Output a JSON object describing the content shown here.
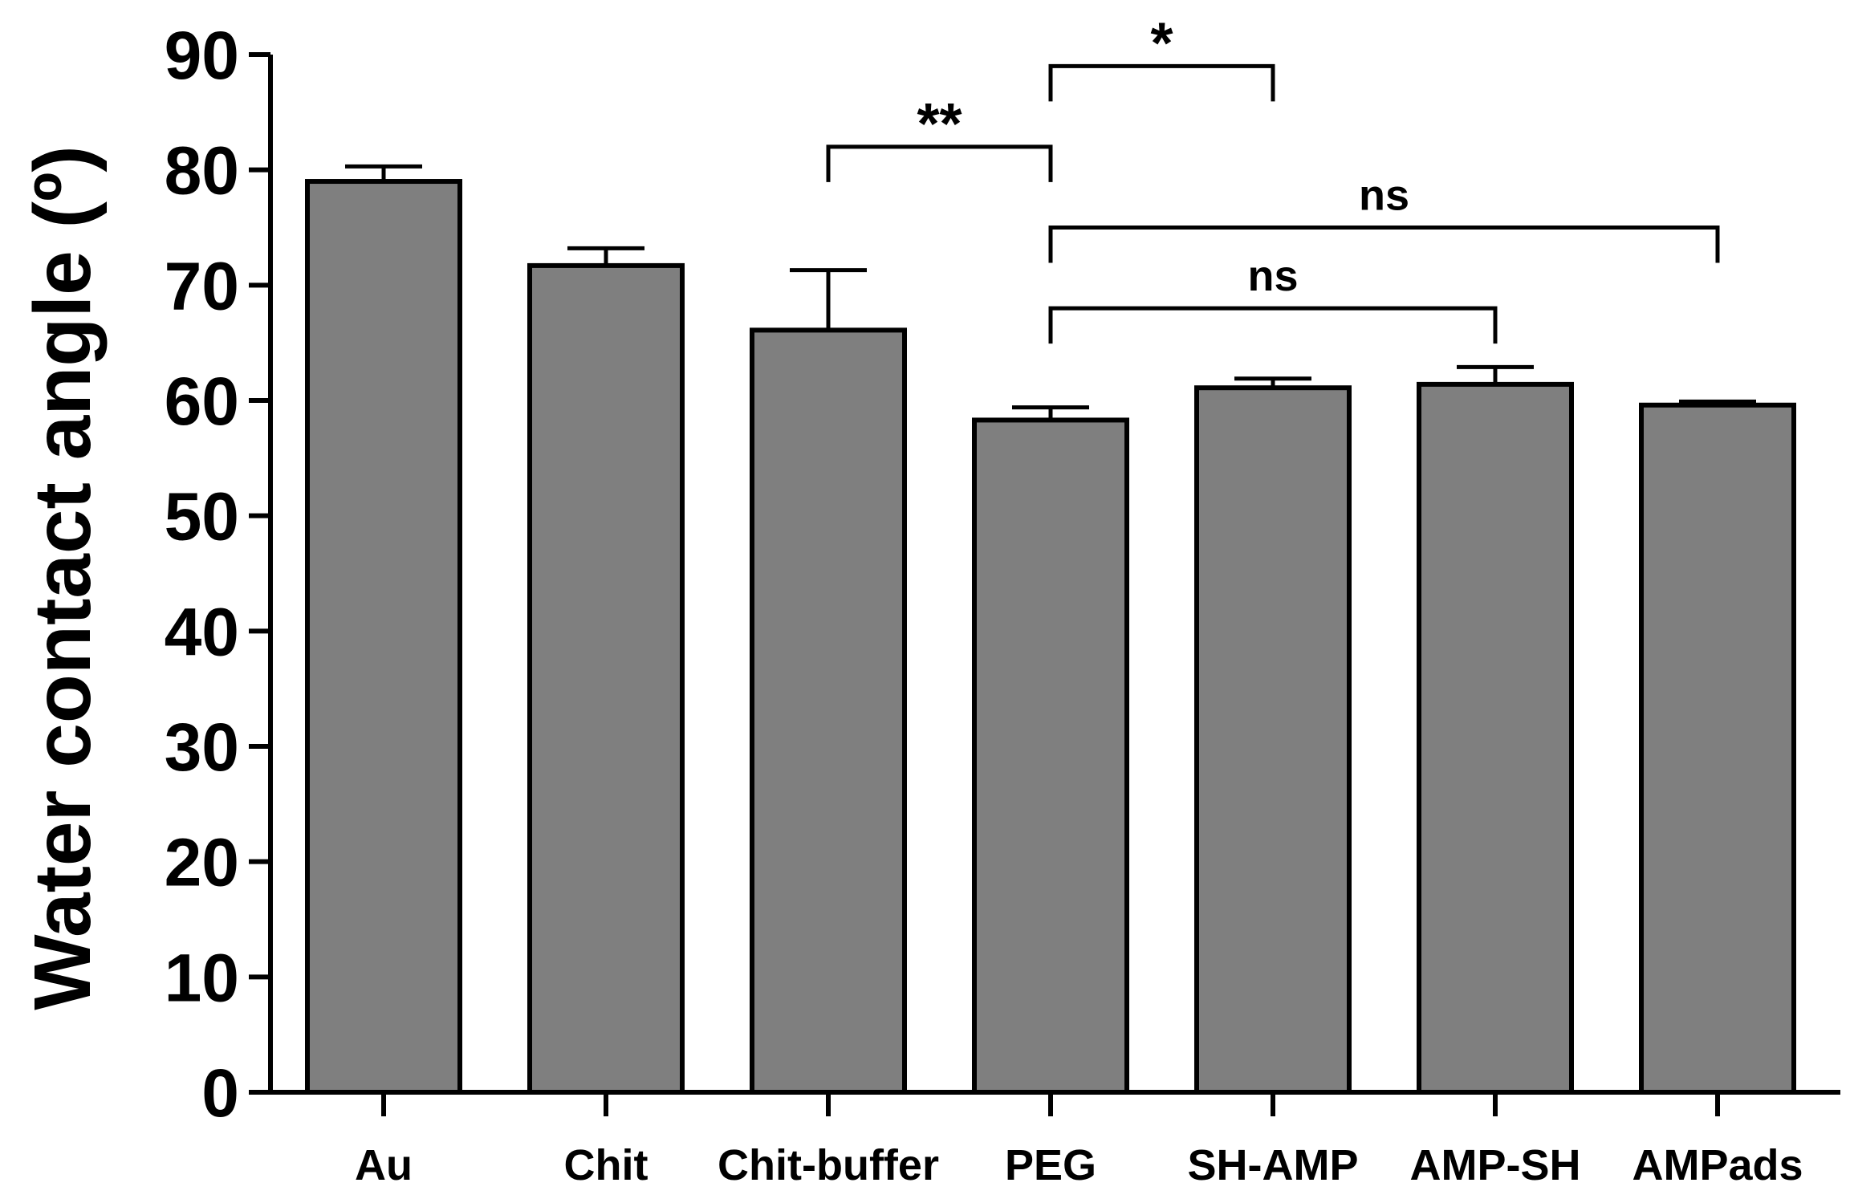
{
  "chart_data": {
    "type": "bar",
    "title": "",
    "xlabel": "",
    "ylabel": "Water contact angle (º)",
    "ylim": [
      0,
      90
    ],
    "yticks": [
      0,
      10,
      20,
      30,
      40,
      50,
      60,
      70,
      80,
      90
    ],
    "categories": [
      "Au",
      "Chit",
      "Chit-buffer",
      "PEG",
      "SH-AMP",
      "AMP-SH",
      "AMPads"
    ],
    "values": [
      79,
      71.7,
      66.1,
      58.3,
      61.1,
      61.4,
      59.6
    ],
    "errors": [
      1.3,
      1.5,
      5.2,
      1.1,
      0.8,
      1.5,
      0.3
    ],
    "bar_color": "#7f7f7f",
    "significance": [
      {
        "from": "Chit-buffer",
        "to": "PEG",
        "label": "**",
        "level": 82
      },
      {
        "from": "PEG",
        "to": "SH-AMP",
        "label": "*",
        "level": 89
      },
      {
        "from": "PEG",
        "to": "AMPads",
        "label": "ns",
        "level": 75
      },
      {
        "from": "PEG",
        "to": "AMP-SH",
        "label": "ns",
        "level": 68
      }
    ]
  }
}
